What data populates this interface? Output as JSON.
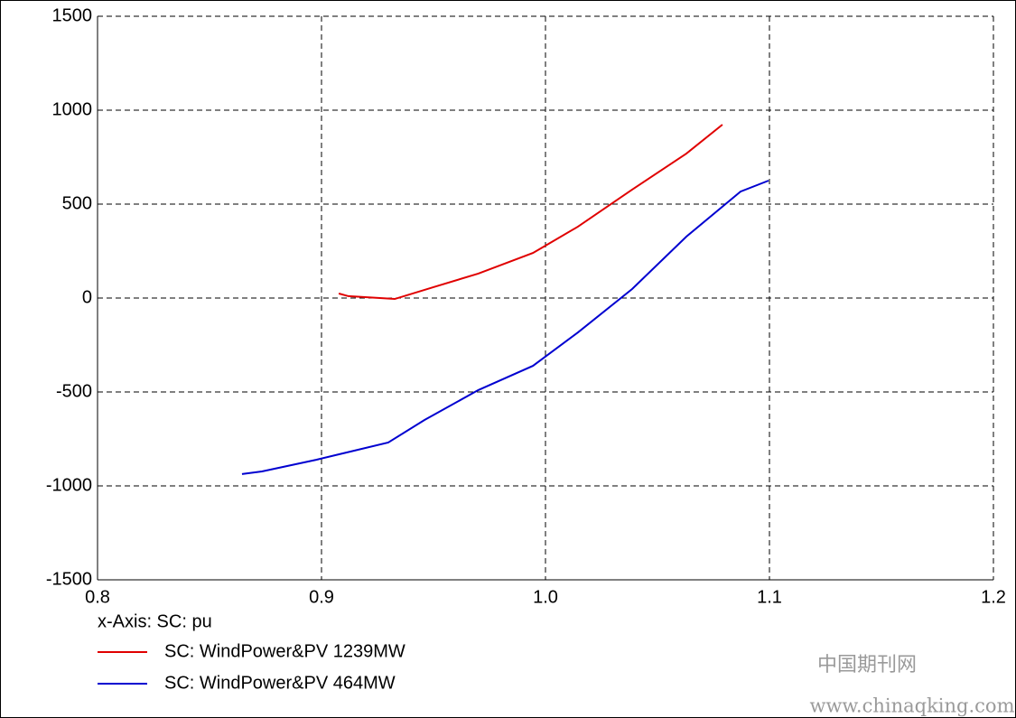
{
  "chart_data": {
    "type": "line",
    "xlabel": "x-Axis: SC: pu",
    "xlim": [
      0.8,
      1.2
    ],
    "xticks": [
      0.8,
      0.9,
      {
        "value": 1,
        "label": "1.0"
      },
      1.1,
      1.2
    ],
    "ylim": [
      -1500,
      1500
    ],
    "yticks": [
      1500,
      1000,
      500,
      0,
      -500,
      -1000,
      -1500
    ],
    "grid": true,
    "series": [
      {
        "name": "SC: WindPower&PV 1239MW",
        "color": "#e00000",
        "x": [
          0.9077,
          0.912,
          0.9327,
          0.95,
          0.97,
          0.9944,
          1.0,
          1.0145,
          1.0387,
          1.0629,
          1.079
        ],
        "values": [
          24,
          10,
          -5,
          58,
          130,
          240,
          279,
          380,
          577,
          769,
          923
        ]
      },
      {
        "name": "SC: WindPower&PV 464MW",
        "color": "#0000d0",
        "x": [
          0.8645,
          0.8734,
          0.8976,
          0.9298,
          0.946,
          0.97,
          0.9944,
          1.0145,
          1.0387,
          1.0629,
          1.0871,
          1.0996
        ],
        "values": [
          -937,
          -923,
          -861,
          -769,
          -649,
          -490,
          -361,
          -183,
          48,
          327,
          567,
          625
        ]
      }
    ],
    "watermark": [
      "中国期刊网",
      "www.chinaqking.com"
    ]
  }
}
